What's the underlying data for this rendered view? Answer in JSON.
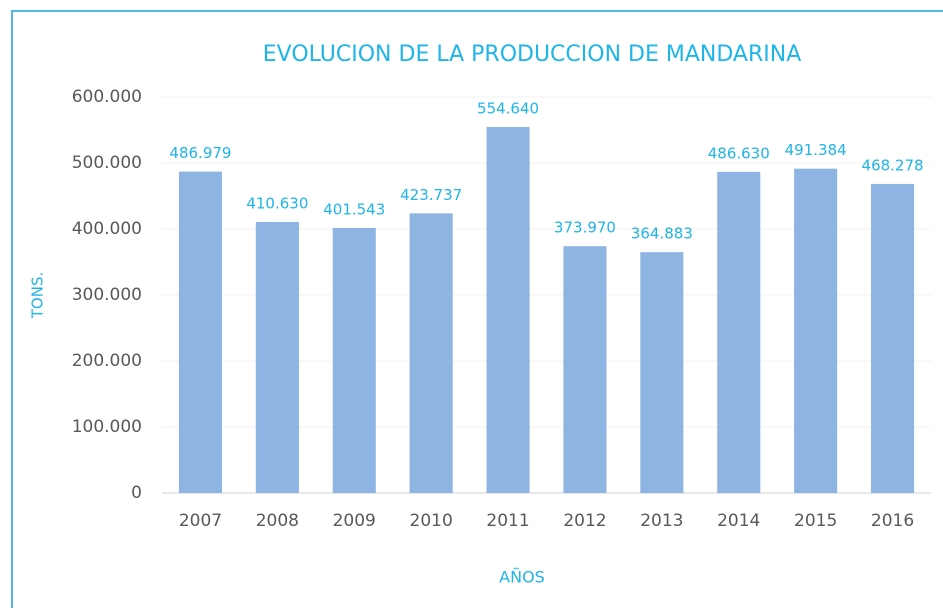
{
  "chart_data": {
    "type": "bar",
    "title": "EVOLUCION DE LA PRODUCCION DE MANDARINA",
    "y_label": "TONS.",
    "x_label": "AÑOS",
    "categories": [
      "2007",
      "2008",
      "2009",
      "2010",
      "2011",
      "2012",
      "2013",
      "2014",
      "2015",
      "2016"
    ],
    "values": [
      486979,
      410630,
      401543,
      423737,
      554640,
      373970,
      364883,
      486630,
      491384,
      468278
    ],
    "value_labels": [
      "486.979",
      "410.630",
      "401.543",
      "423.737",
      "554.640",
      "373.970",
      "364.883",
      "486.630",
      "491.384",
      "468.278"
    ],
    "color": "#8db4e2",
    "ylim": [
      0,
      600000
    ],
    "yticks": [
      0,
      {
        "value": 100000,
        "label": "100.000"
      },
      {
        "value": 200000,
        "label": "200.000"
      },
      {
        "value": 300000,
        "label": "300.000"
      },
      {
        "value": 400000,
        "label": "400.000"
      },
      {
        "value": 500000,
        "label": "500.000"
      },
      {
        "value": 600000,
        "label": "600.000"
      }
    ],
    "grid": true
  }
}
